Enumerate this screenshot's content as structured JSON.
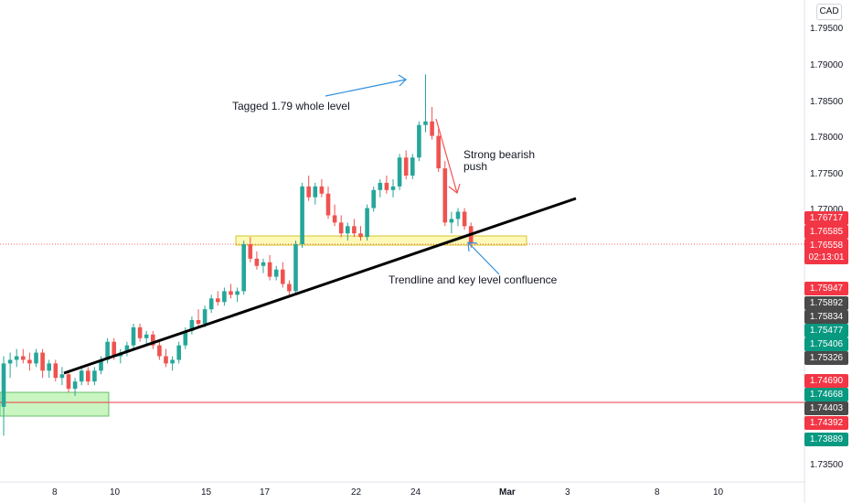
{
  "currency_button": "CAD",
  "price_axis": {
    "ticks": [
      "1.79500",
      "1.79000",
      "1.78500",
      "1.78000",
      "1.77500",
      "1.77000",
      "1.73500"
    ],
    "tick_values": [
      1.795,
      1.79,
      1.785,
      1.78,
      1.775,
      1.77,
      1.735
    ]
  },
  "time_axis": {
    "labels": [
      "8",
      "10",
      "15",
      "17",
      "22",
      "24",
      "Mar",
      "3",
      "8",
      "10"
    ]
  },
  "price_tags": [
    {
      "text": "1.76717",
      "color": "#f23645"
    },
    {
      "text": "1.76585",
      "color": "#f23645"
    },
    {
      "text": "1.76558",
      "color": "#f23645"
    },
    {
      "text": "02:13:01",
      "color": "#f23645"
    },
    {
      "text": "1.75947",
      "color": "#f23645"
    },
    {
      "text": "1.75892",
      "color": "#4a4a4a"
    },
    {
      "text": "1.75834",
      "color": "#4a4a4a"
    },
    {
      "text": "1.75477",
      "color": "#089981"
    },
    {
      "text": "1.75406",
      "color": "#089981"
    },
    {
      "text": "1.75326",
      "color": "#4a4a4a"
    },
    {
      "text": "1.74690",
      "color": "#f23645"
    },
    {
      "text": "1.74668",
      "color": "#089981"
    },
    {
      "text": "1.74403",
      "color": "#4a4a4a"
    },
    {
      "text": "1.74392",
      "color": "#f23645"
    },
    {
      "text": "1.73889",
      "color": "#089981"
    }
  ],
  "annotations": {
    "tagged": "Tagged 1.79 whole level",
    "bearish_line1": "Strong bearish",
    "bearish_line2": "push",
    "confluence": "Trendline and key level confluence"
  },
  "colors": {
    "bull": "#26a69a",
    "bear": "#ef5350",
    "arrow": "#2f8fdd",
    "zone": "#fff9b8",
    "demand": "#c8f5c0",
    "hline": "#f23645"
  },
  "chart_data": {
    "type": "candlestick",
    "symbol_quote": "CAD",
    "y_range": [
      1.733,
      1.798
    ],
    "horizontal_line": 1.74403,
    "current_price": 1.76558,
    "candles": [
      [
        1.743,
        1.75,
        1.739,
        1.749
      ],
      [
        1.749,
        1.7505,
        1.747,
        1.7495
      ],
      [
        1.7495,
        1.751,
        1.7485,
        1.75
      ],
      [
        1.75,
        1.751,
        1.749,
        1.7495
      ],
      [
        1.7495,
        1.7505,
        1.748,
        1.749
      ],
      [
        1.749,
        1.751,
        1.7485,
        1.7505
      ],
      [
        1.7505,
        1.751,
        1.747,
        1.748
      ],
      [
        1.748,
        1.7495,
        1.747,
        1.749
      ],
      [
        1.749,
        1.7495,
        1.7465,
        1.747
      ],
      [
        1.747,
        1.7485,
        1.746,
        1.7475
      ],
      [
        1.7475,
        1.748,
        1.745,
        1.7455
      ],
      [
        1.7455,
        1.747,
        1.7445,
        1.7465
      ],
      [
        1.7465,
        1.7485,
        1.746,
        1.748
      ],
      [
        1.748,
        1.7485,
        1.746,
        1.7465
      ],
      [
        1.7465,
        1.7485,
        1.746,
        1.748
      ],
      [
        1.748,
        1.75,
        1.7475,
        1.7495
      ],
      [
        1.7495,
        1.7525,
        1.749,
        1.752
      ],
      [
        1.752,
        1.7525,
        1.7495,
        1.75
      ],
      [
        1.75,
        1.751,
        1.749,
        1.7505
      ],
      [
        1.7505,
        1.752,
        1.75,
        1.7515
      ],
      [
        1.7515,
        1.7545,
        1.751,
        1.754
      ],
      [
        1.754,
        1.7545,
        1.752,
        1.7525
      ],
      [
        1.7525,
        1.7535,
        1.7515,
        1.753
      ],
      [
        1.753,
        1.7535,
        1.751,
        1.7515
      ],
      [
        1.7515,
        1.752,
        1.7495,
        1.75
      ],
      [
        1.75,
        1.751,
        1.7485,
        1.749
      ],
      [
        1.749,
        1.75,
        1.748,
        1.7495
      ],
      [
        1.7495,
        1.752,
        1.749,
        1.7515
      ],
      [
        1.7515,
        1.754,
        1.751,
        1.7535
      ],
      [
        1.7535,
        1.7555,
        1.753,
        1.755
      ],
      [
        1.755,
        1.7565,
        1.754,
        1.7545
      ],
      [
        1.7545,
        1.757,
        1.754,
        1.7565
      ],
      [
        1.7565,
        1.7585,
        1.756,
        1.758
      ],
      [
        1.758,
        1.759,
        1.757,
        1.7575
      ],
      [
        1.7575,
        1.7595,
        1.757,
        1.759
      ],
      [
        1.759,
        1.76,
        1.758,
        1.7585
      ],
      [
        1.7585,
        1.7595,
        1.7575,
        1.759
      ],
      [
        1.759,
        1.766,
        1.7585,
        1.7655
      ],
      [
        1.7655,
        1.7665,
        1.763,
        1.7635
      ],
      [
        1.7635,
        1.7645,
        1.762,
        1.7625
      ],
      [
        1.7625,
        1.7635,
        1.7615,
        1.763
      ],
      [
        1.763,
        1.764,
        1.7605,
        1.761
      ],
      [
        1.761,
        1.7625,
        1.7605,
        1.762
      ],
      [
        1.762,
        1.763,
        1.7595,
        1.76
      ],
      [
        1.76,
        1.7605,
        1.7585,
        1.759
      ],
      [
        1.759,
        1.766,
        1.7585,
        1.7655
      ],
      [
        1.7655,
        1.774,
        1.765,
        1.7735
      ],
      [
        1.7735,
        1.775,
        1.7715,
        1.772
      ],
      [
        1.772,
        1.774,
        1.771,
        1.7735
      ],
      [
        1.7735,
        1.7745,
        1.772,
        1.7725
      ],
      [
        1.7725,
        1.7735,
        1.769,
        1.7695
      ],
      [
        1.7695,
        1.771,
        1.768,
        1.7685
      ],
      [
        1.7685,
        1.7695,
        1.7665,
        1.767
      ],
      [
        1.767,
        1.7685,
        1.766,
        1.768
      ],
      [
        1.768,
        1.769,
        1.7665,
        1.767
      ],
      [
        1.767,
        1.768,
        1.766,
        1.7665
      ],
      [
        1.7665,
        1.771,
        1.766,
        1.7705
      ],
      [
        1.7705,
        1.7735,
        1.77,
        1.773
      ],
      [
        1.773,
        1.7745,
        1.772,
        1.774
      ],
      [
        1.774,
        1.775,
        1.7725,
        1.773
      ],
      [
        1.773,
        1.7745,
        1.772,
        1.7735
      ],
      [
        1.7735,
        1.778,
        1.773,
        1.7775
      ],
      [
        1.7775,
        1.7785,
        1.7745,
        1.775
      ],
      [
        1.775,
        1.778,
        1.7745,
        1.7775
      ],
      [
        1.7775,
        1.7825,
        1.777,
        1.782
      ],
      [
        1.782,
        1.789,
        1.781,
        1.7825
      ],
      [
        1.7825,
        1.7845,
        1.78,
        1.7805
      ],
      [
        1.7805,
        1.7815,
        1.7755,
        1.776
      ],
      [
        1.776,
        1.777,
        1.768,
        1.7685
      ],
      [
        1.7685,
        1.77,
        1.767,
        1.769
      ],
      [
        1.769,
        1.7705,
        1.768,
        1.77
      ],
      [
        1.77,
        1.7705,
        1.7675,
        1.768
      ],
      [
        1.768,
        1.7685,
        1.765,
        1.7656
      ]
    ]
  }
}
